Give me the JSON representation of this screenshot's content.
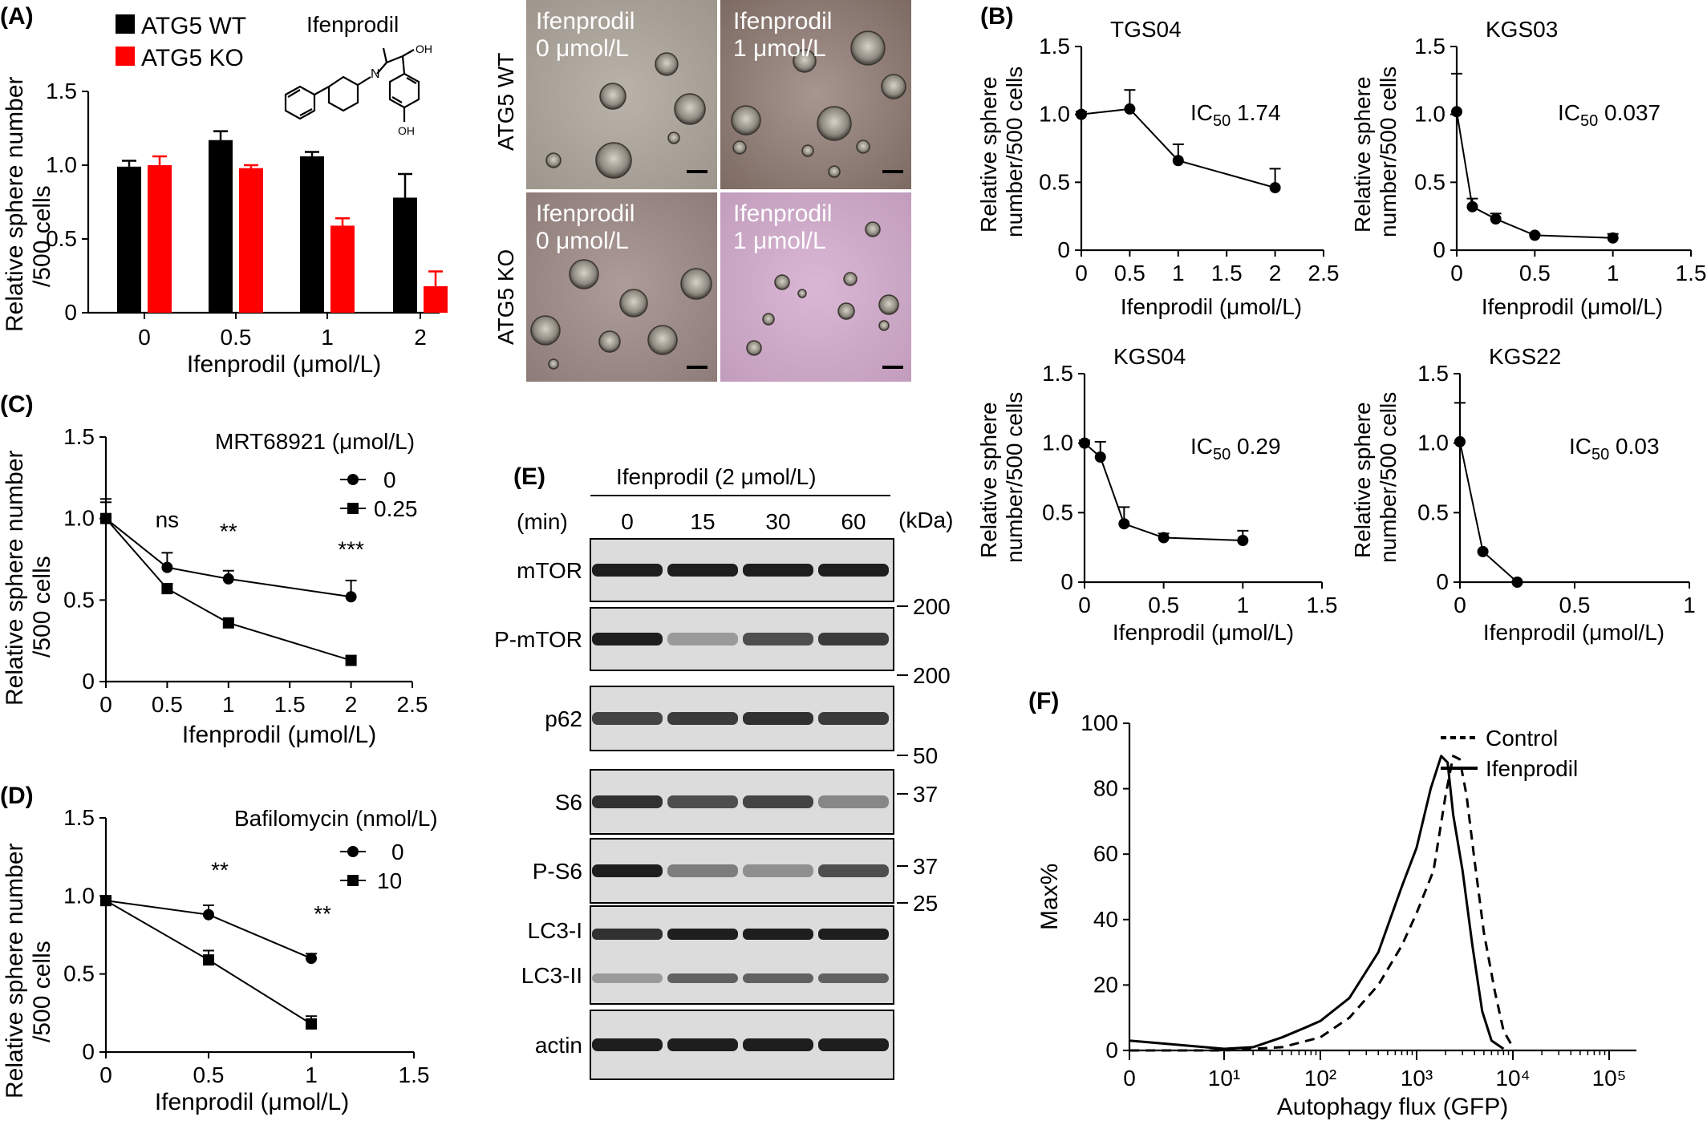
{
  "panels": {
    "A": {
      "letter": "(A)",
      "legend": [
        "ATG5 WT",
        "ATG5 KO"
      ],
      "compound": "Ifenprodil",
      "ylabel_line1": "Relative sphere number",
      "ylabel_line2": "/500 cells",
      "xlabel": "Ifenprodil (μmol/L)",
      "photos": {
        "row_labels": [
          "ATG5 WT",
          "ATG5 KO"
        ],
        "cells": [
          [
            "Ifenprodil",
            "0 μmol/L"
          ],
          [
            "Ifenprodil",
            "1 μmol/L"
          ],
          [
            "Ifenprodil",
            "0 μmol/L"
          ],
          [
            "Ifenprodil",
            "1 μmol/L"
          ]
        ]
      }
    },
    "B": {
      "letter": "(B)",
      "ylabel_line1": "Relative sphere",
      "ylabel_line2": "number/500 cells",
      "xlabel": "Ifenprodil (μmol/L)"
    },
    "C": {
      "letter": "(C)",
      "treatment": "MRT68921 (μmol/L)",
      "ylabel_line1": "Relative sphere  number",
      "ylabel_line2": "/500 cells",
      "xlabel": "Ifenprodil (μmol/L)",
      "sig": [
        "ns",
        "**",
        "***"
      ]
    },
    "D": {
      "letter": "(D)",
      "treatment": "Bafilomycin (nmol/L)",
      "ylabel_line1": "Relative sphere number",
      "ylabel_line2": "/500 cells",
      "xlabel": "Ifenprodil (μmol/L)",
      "sig": [
        "**",
        "**"
      ]
    },
    "E": {
      "letter": "(E)",
      "treatment": "Ifenprodil (2 μmol/L)",
      "time_label": "(min)",
      "times": [
        "0",
        "15",
        "30",
        "60"
      ],
      "kda_label": "(kDa)",
      "blots": [
        {
          "labels": [
            "mTOR"
          ],
          "marker": "200",
          "pattern": [
            1,
            1,
            1,
            1
          ]
        },
        {
          "labels": [
            "P-mTOR"
          ],
          "marker": "200",
          "pattern": [
            1,
            0.35,
            0.75,
            0.85
          ]
        },
        {
          "labels": [
            "p62"
          ],
          "marker": "50",
          "pattern": [
            0.8,
            0.85,
            0.9,
            0.85
          ]
        },
        {
          "labels": [
            "S6"
          ],
          "marker": "37",
          "pattern": [
            0.9,
            0.75,
            0.8,
            0.45
          ]
        },
        {
          "labels": [
            "P-S6"
          ],
          "marker": "37",
          "pattern": [
            1,
            0.5,
            0.4,
            0.75
          ]
        },
        {
          "labels": [
            "LC3-I",
            "LC3-II"
          ],
          "marker": "25",
          "pattern": [
            0.9,
            1,
            1,
            1
          ]
        },
        {
          "labels": [
            "actin"
          ],
          "marker": "",
          "pattern": [
            1,
            1,
            1,
            1
          ]
        }
      ]
    },
    "F": {
      "letter": "(F)",
      "ylabel": "Max%",
      "xlabel": "Autophagy flux (GFP)",
      "legend": [
        "Control",
        "Ifenprodil"
      ]
    }
  },
  "chart_data": [
    {
      "id": "A",
      "type": "bar",
      "categories": [
        "0",
        "0.5",
        "1",
        "2"
      ],
      "series": [
        {
          "name": "ATG5 WT",
          "values": [
            0.99,
            1.17,
            1.06,
            0.78
          ],
          "errors": [
            0.04,
            0.06,
            0.03,
            0.16
          ],
          "color": "#000000"
        },
        {
          "name": "ATG5 KO",
          "values": [
            1.0,
            0.98,
            0.59,
            0.18
          ],
          "errors": [
            0.06,
            0.02,
            0.05,
            0.1
          ],
          "color": "#ff0000"
        }
      ],
      "ylim": [
        0,
        1.5
      ],
      "yticks": [
        "0",
        "0.5",
        "1.0",
        "1.5"
      ]
    },
    {
      "id": "B1",
      "type": "line",
      "title": "TGS04",
      "annotation": "IC50 1.74",
      "x": [
        0,
        0.5,
        1,
        2
      ],
      "y": [
        1.0,
        1.04,
        0.66,
        0.46
      ],
      "errors": [
        0.02,
        0.14,
        0.12,
        0.14
      ],
      "xlim": [
        0,
        2.5
      ],
      "ylim": [
        0,
        1.5
      ],
      "xticks": [
        "0",
        "0.5",
        "1",
        "1.5",
        "2",
        "2.5"
      ],
      "yticks": [
        "0",
        "0.5",
        "1.0",
        "1.5"
      ]
    },
    {
      "id": "B2",
      "type": "line",
      "title": "KGS03",
      "annotation": "IC50 0.037",
      "x": [
        0,
        0.1,
        0.25,
        0.5,
        1
      ],
      "y": [
        1.02,
        0.32,
        0.23,
        0.11,
        0.09
      ],
      "errors": [
        0.28,
        0.06,
        0.04,
        0.01,
        0.03
      ],
      "xlim": [
        0,
        1.5
      ],
      "ylim": [
        0,
        1.5
      ],
      "xticks": [
        "0",
        "0.5",
        "1",
        "1.5"
      ],
      "yticks": [
        "0",
        "0.5",
        "1.0",
        "1.5"
      ]
    },
    {
      "id": "B3",
      "type": "line",
      "title": "KGS04",
      "annotation": "IC50 0.29",
      "x": [
        0,
        0.1,
        0.25,
        0.5,
        1
      ],
      "y": [
        1.0,
        0.9,
        0.42,
        0.32,
        0.3
      ],
      "errors": [
        0.02,
        0.11,
        0.12,
        0.03,
        0.07
      ],
      "xlim": [
        0,
        1.5
      ],
      "ylim": [
        0,
        1.5
      ],
      "xticks": [
        "0",
        "0.5",
        "1",
        "1.5"
      ],
      "yticks": [
        "0",
        "0.5",
        "1.0",
        "1.5"
      ]
    },
    {
      "id": "B4",
      "type": "line",
      "title": "KGS22",
      "annotation": "IC50 0.03",
      "x": [
        0,
        0.1,
        0.25
      ],
      "y": [
        1.01,
        0.22,
        0.0
      ],
      "errors": [
        0.28,
        0.0,
        0.0
      ],
      "xlim": [
        0,
        1
      ],
      "ylim": [
        0,
        1.5
      ],
      "xticks": [
        "0",
        "0.5",
        "1"
      ],
      "yticks": [
        "0",
        "0.5",
        "1.0",
        "1.5"
      ]
    },
    {
      "id": "C",
      "type": "line",
      "series": [
        {
          "name": "0",
          "marker": "circle",
          "x": [
            0,
            0.5,
            1,
            2
          ],
          "y": [
            1.0,
            0.7,
            0.63,
            0.52
          ],
          "errors": [
            0.12,
            0.09,
            0.05,
            0.1
          ]
        },
        {
          "name": "0.25",
          "marker": "square",
          "x": [
            0,
            0.5,
            1,
            2
          ],
          "y": [
            1.0,
            0.57,
            0.36,
            0.13
          ],
          "errors": [
            0.1,
            0.03,
            0.02,
            0.01
          ]
        }
      ],
      "xlim": [
        0,
        2.5
      ],
      "ylim": [
        0,
        1.5
      ],
      "xticks": [
        "0",
        "0.5",
        "1",
        "1.5",
        "2",
        "2.5"
      ],
      "yticks": [
        "0",
        "0.5",
        "1.0",
        "1.5"
      ]
    },
    {
      "id": "D",
      "type": "line",
      "series": [
        {
          "name": "0",
          "marker": "circle",
          "x": [
            0,
            0.5,
            1
          ],
          "y": [
            0.97,
            0.88,
            0.6
          ],
          "errors": [
            0.02,
            0.06,
            0.03
          ]
        },
        {
          "name": "10",
          "marker": "square",
          "x": [
            0,
            0.5,
            1
          ],
          "y": [
            0.97,
            0.59,
            0.18
          ],
          "errors": [
            0.02,
            0.06,
            0.05
          ]
        }
      ],
      "xlim": [
        0,
        1.5
      ],
      "ylim": [
        0,
        1.5
      ],
      "xticks": [
        "0",
        "0.5",
        "1",
        "1.5"
      ],
      "yticks": [
        "0",
        "0.5",
        "1.0",
        "1.5"
      ]
    },
    {
      "id": "F",
      "type": "line",
      "xscale": "log",
      "series": [
        {
          "name": "Control",
          "style": "dashed",
          "x": [
            0,
            10,
            40,
            100,
            200,
            400,
            700,
            1000,
            1500,
            2000,
            2400,
            2800,
            3300,
            4000,
            5000,
            6500,
            8000,
            10000
          ],
          "y": [
            0,
            0,
            1,
            4,
            10,
            20,
            32,
            42,
            55,
            78,
            90,
            89,
            78,
            58,
            36,
            18,
            6,
            1
          ]
        },
        {
          "name": "Ifenprodil",
          "style": "solid",
          "x": [
            0,
            10,
            20,
            40,
            70,
            100,
            200,
            400,
            700,
            1000,
            1400,
            1800,
            2100,
            2400,
            3000,
            3800,
            4800,
            6000,
            8000
          ],
          "y": [
            3,
            0.5,
            1,
            4,
            7,
            9,
            16,
            30,
            50,
            62,
            80,
            90,
            88,
            72,
            55,
            32,
            12,
            3,
            0.5
          ]
        }
      ],
      "ylim": [
        0,
        100
      ],
      "xticks": [
        "0",
        "10¹",
        "10²",
        "10³",
        "10⁴",
        "10⁵"
      ],
      "yticks": [
        "0",
        "20",
        "40",
        "60",
        "80",
        "100"
      ]
    }
  ]
}
